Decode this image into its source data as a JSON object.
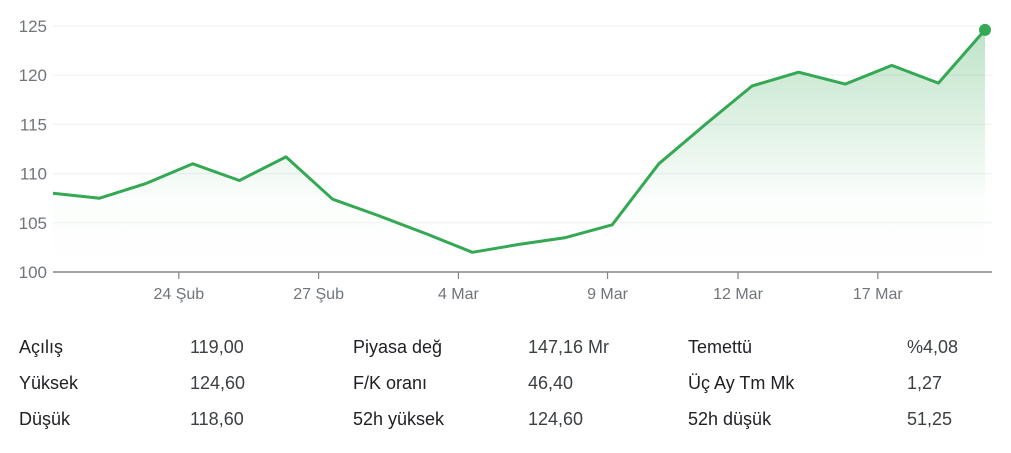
{
  "chart_data": {
    "type": "area",
    "title": "",
    "xlabel": "",
    "ylabel": "",
    "ylim": [
      100,
      125
    ],
    "yticks": [
      100,
      105,
      110,
      115,
      120,
      125
    ],
    "xtick_labels": [
      "24 Şub",
      "27 Şub",
      "4 Mar",
      "9 Mar",
      "12 Mar",
      "17 Mar"
    ],
    "grid": true,
    "values": [
      108.0,
      107.5,
      109.0,
      111.0,
      109.3,
      111.7,
      107.4,
      105.7,
      103.9,
      102.0,
      102.8,
      103.5,
      104.8,
      111.0,
      115.0,
      118.9,
      120.3,
      119.1,
      121.0,
      119.2,
      124.6
    ],
    "line_color": "#34a853",
    "last_point_marker": true
  },
  "stats": [
    [
      {
        "label": "Açılış",
        "value": "119,00"
      },
      {
        "label": "Piyasa değ",
        "value": "147,16 Mr"
      },
      {
        "label": "Temettü",
        "value": "%4,08"
      }
    ],
    [
      {
        "label": "Yüksek",
        "value": "124,60"
      },
      {
        "label": "F/K oranı",
        "value": "46,40"
      },
      {
        "label": "Üç Ay Tm Mk",
        "value": "1,27"
      }
    ],
    [
      {
        "label": "Düşük",
        "value": "118,60"
      },
      {
        "label": "52h yüksek",
        "value": "124,60"
      },
      {
        "label": "52h düşük",
        "value": "51,25"
      }
    ]
  ]
}
